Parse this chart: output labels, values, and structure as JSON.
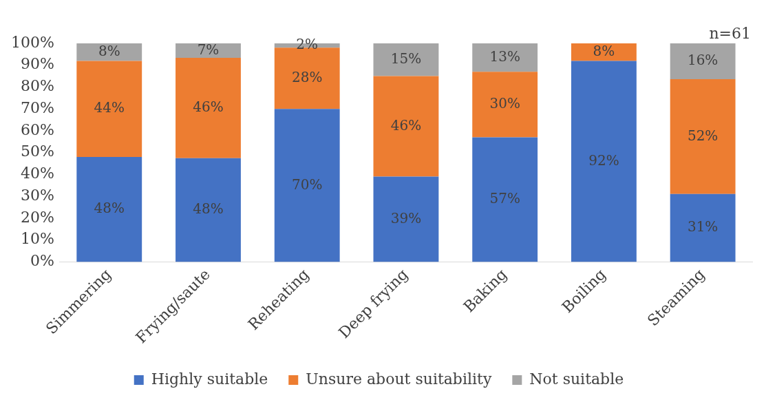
{
  "chart_data": {
    "type": "bar",
    "stacked": true,
    "categories": [
      "Simmering",
      "Frying/saute",
      "Reheating",
      "Deep frying",
      "Baking",
      "Boiling",
      "Steaming"
    ],
    "series": [
      {
        "name": "Highly suitable",
        "color": "#4472c4",
        "values": [
          48,
          47.5,
          70,
          39,
          57,
          92,
          31.1
        ],
        "value_labels": [
          "48%",
          "48%",
          "70%",
          "39%",
          "57%",
          "92%",
          "31%"
        ]
      },
      {
        "name": "Unsure about suitability",
        "color": "#ed7d31",
        "values": [
          44,
          45.9,
          28,
          46,
          30,
          8,
          52.5
        ],
        "value_labels": [
          "44%",
          "46%",
          "28%",
          "46%",
          "30%",
          "8%",
          "52%"
        ]
      },
      {
        "name": "Not suitable",
        "color": "#a5a5a5",
        "values": [
          8,
          6.6,
          2,
          15,
          13,
          null,
          16.4
        ],
        "value_labels": [
          "8%",
          "7%",
          "2%",
          "15%",
          "13%",
          null,
          "16%"
        ]
      }
    ],
    "ylim": [
      0,
      100
    ],
    "yticks": [
      {
        "value": 0,
        "label": "0%"
      },
      {
        "value": 10,
        "label": "10%"
      },
      {
        "value": 20,
        "label": "20%"
      },
      {
        "value": 30,
        "label": "30%"
      },
      {
        "value": 40,
        "label": "40%"
      },
      {
        "value": 50,
        "label": "50%"
      },
      {
        "value": 60,
        "label": "60%"
      },
      {
        "value": 70,
        "label": "70%"
      },
      {
        "value": 80,
        "label": "80%"
      },
      {
        "value": 90,
        "label": "90%"
      },
      {
        "value": 100,
        "label": "100%"
      }
    ],
    "grid": false,
    "legend": "bottom",
    "annotations": [
      "n=61"
    ]
  }
}
